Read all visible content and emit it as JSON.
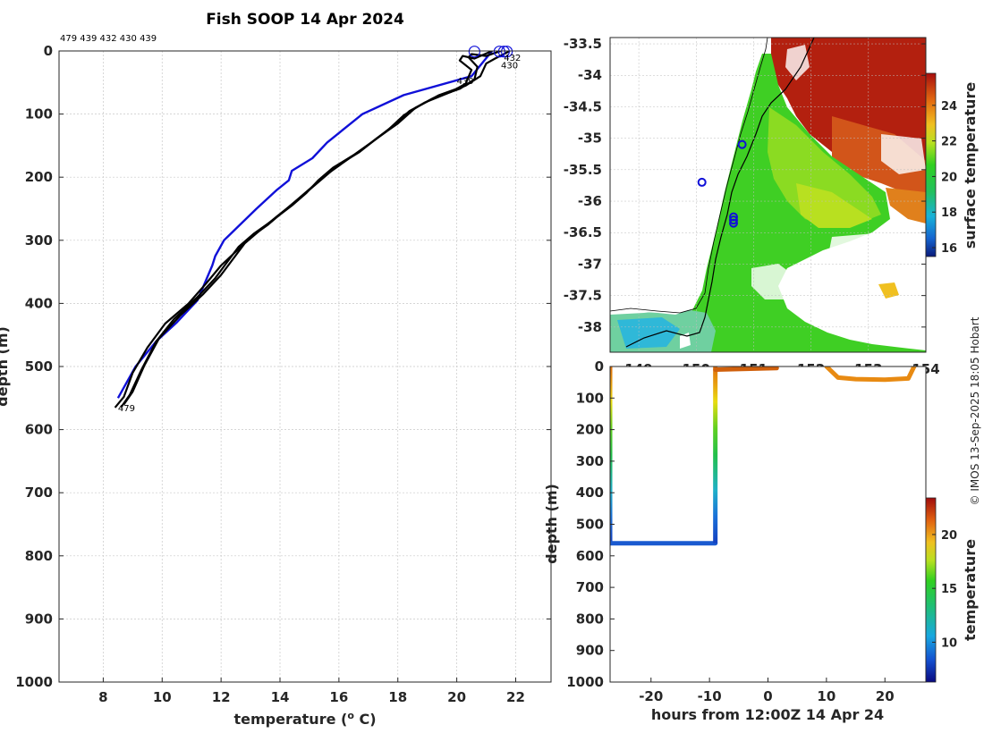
{
  "chart_data": [
    {
      "type": "line",
      "name": "profile",
      "title": "Fish SOOP 14 Apr 2024",
      "xlabel": "temperature (",
      "xlabel_sup": "o",
      "xlabel_end": " C)",
      "ylabel": "depth (m)",
      "xlim": [
        6.5,
        23.2
      ],
      "ylim": [
        0,
        1000
      ],
      "xticks": [
        8,
        10,
        12,
        14,
        16,
        18,
        20,
        22
      ],
      "yticks": [
        0,
        100,
        200,
        300,
        400,
        500,
        600,
        700,
        800,
        900,
        1000
      ],
      "top_ids": "479 439 432 430 439",
      "profile_labels": [
        {
          "text": "479",
          "x": 8.5,
          "y": 565
        },
        {
          "text": "439",
          "x": 20.0,
          "y": 47
        },
        {
          "text": "432",
          "x": 21.6,
          "y": 10
        },
        {
          "text": "430",
          "x": 21.5,
          "y": 22
        }
      ],
      "series": [
        {
          "name": "climatology",
          "color": "#1010d8",
          "x": [
            8.5,
            8.8,
            9.1,
            9.8,
            10.5,
            11.2,
            11.7,
            11.8,
            12.1,
            13.2,
            13.9,
            14.3,
            14.4,
            15.1,
            15.6,
            16.8,
            18.2,
            20.5,
            21.2
          ],
          "y": [
            550,
            525,
            500,
            460,
            430,
            395,
            340,
            325,
            300,
            250,
            220,
            205,
            190,
            170,
            145,
            100,
            70,
            40,
            0
          ]
        },
        {
          "name": "profile-1",
          "color": "#000000",
          "x": [
            8.6,
            8.9,
            9.3,
            9.8,
            10.4,
            11.2,
            11.8,
            12.2,
            12.6,
            13.1,
            13.7,
            14.4,
            14.9,
            15.3,
            15.8,
            16.5,
            17.1,
            17.8,
            18.4,
            19.2,
            20.1,
            20.6,
            20.7,
            20.4,
            20.5,
            21.0,
            21.5
          ],
          "y": [
            565,
            545,
            505,
            460,
            425,
            390,
            360,
            335,
            310,
            290,
            270,
            245,
            225,
            205,
            185,
            165,
            145,
            120,
            95,
            75,
            60,
            45,
            25,
            10,
            5,
            8,
            0
          ]
        },
        {
          "name": "profile-2",
          "color": "#000000",
          "x": [
            8.4,
            8.7,
            9.0,
            9.5,
            10.1,
            10.9,
            11.5,
            12.0,
            12.5,
            13.0,
            13.6,
            14.1,
            14.6,
            15.1,
            15.6,
            16.2,
            16.9,
            17.6,
            18.2,
            18.9,
            19.8,
            20.3,
            20.5,
            20.1,
            20.2,
            20.6,
            21.2
          ],
          "y": [
            565,
            548,
            510,
            470,
            432,
            400,
            368,
            340,
            318,
            295,
            275,
            255,
            235,
            215,
            195,
            175,
            152,
            128,
            102,
            82,
            65,
            52,
            30,
            15,
            8,
            12,
            0
          ]
        },
        {
          "name": "profile-3",
          "color": "#000000",
          "x": [
            8.7,
            9.0,
            9.4,
            9.9,
            10.6,
            11.4,
            12.0,
            12.4,
            12.8,
            13.3,
            13.9,
            14.5,
            15.0,
            15.5,
            16.0,
            16.7,
            17.3,
            18.0,
            18.6,
            19.4,
            20.3,
            20.8,
            21.0,
            21.3,
            21.6,
            21.8
          ],
          "y": [
            560,
            540,
            498,
            455,
            420,
            385,
            355,
            330,
            305,
            285,
            262,
            240,
            220,
            200,
            180,
            160,
            138,
            115,
            90,
            70,
            55,
            40,
            20,
            12,
            5,
            0
          ]
        }
      ],
      "start_markers": [
        {
          "x": 20.6,
          "y": 1
        },
        {
          "x": 21.45,
          "y": 1
        },
        {
          "x": 21.6,
          "y": 1
        },
        {
          "x": 21.7,
          "y": 1
        }
      ]
    },
    {
      "type": "heatmap",
      "name": "sst-map",
      "colorbar_label": "surface temperature",
      "colorbar_ticks": [
        16,
        18,
        20,
        22,
        24
      ],
      "colorbar_range": [
        15.5,
        25.8
      ],
      "yticks": [
        "-33.5",
        "-34",
        "-34.5",
        "-35",
        "-35.5",
        "-36",
        "-36.5",
        "-37",
        "-37.5",
        "-38"
      ],
      "ylim": [
        -38.4,
        -33.4
      ],
      "xticks": [
        "149",
        "150",
        "151",
        "152",
        "153",
        "154"
      ],
      "xlim": [
        148.5,
        154.0
      ],
      "stations": [
        {
          "lon": 150.8,
          "lat": -35.1
        },
        {
          "lon": 150.1,
          "lat": -35.7
        },
        {
          "lon": 150.65,
          "lat": -36.25
        },
        {
          "lon": 150.65,
          "lat": -36.3
        },
        {
          "lon": 150.65,
          "lat": -36.35
        }
      ]
    },
    {
      "type": "scatter",
      "name": "section",
      "xlabel": "hours from 12:00Z 14 Apr 24",
      "ylabel": "depth (m)",
      "xlim": [
        -27,
        27
      ],
      "ylim": [
        0,
        1000
      ],
      "xticks": [
        -20,
        -10,
        0,
        10,
        20
      ],
      "yticks": [
        0,
        100,
        200,
        300,
        400,
        500,
        600,
        700,
        800,
        900,
        1000
      ],
      "colorbar_label": "temperature",
      "colorbar_ticks": [
        10,
        15,
        20
      ],
      "colorbar_range": [
        6.3,
        23.4
      ],
      "tracks": [
        {
          "name": "cast-down-1",
          "x": [
            -27,
            -27
          ],
          "y": [
            0,
            560
          ]
        },
        {
          "name": "bottom-run",
          "x": [
            -27,
            -9
          ],
          "y": [
            560,
            560
          ]
        },
        {
          "name": "cast-up-1",
          "x": [
            -9,
            -9
          ],
          "y": [
            560,
            0
          ]
        },
        {
          "name": "surface-run",
          "x": [
            -9,
            1.5
          ],
          "y": [
            10,
            5
          ]
        },
        {
          "name": "shallow-run",
          "x": [
            10,
            12,
            15,
            20,
            24,
            25
          ],
          "y": [
            0,
            35,
            40,
            42,
            38,
            0
          ]
        }
      ]
    }
  ],
  "credit": "© IMOS 13-Sep-2025 18:05 Hobart"
}
